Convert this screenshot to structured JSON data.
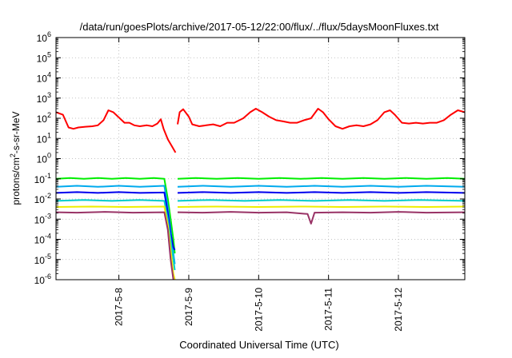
{
  "chart_data": {
    "type": "line",
    "title": "/data/run/goesPlots/archive/2017-05-12/22:00/flux/../flux/5daysMoonFluxes.txt",
    "xlabel": "Coordinated Universal Time (UTC)",
    "ylabel": {
      "pre": "protons/cm",
      "sup": "2",
      "post": "-s-sr-MeV"
    },
    "xlim": [
      7.1,
      12.95
    ],
    "x_unit": "day of May 2017",
    "y_scale": "log",
    "ylim_exp": [
      -6,
      6
    ],
    "grid": true,
    "legend": "none",
    "x_ticks": [
      {
        "x": 8,
        "label": "2017-5-8"
      },
      {
        "x": 9,
        "label": "2017-5-9"
      },
      {
        "x": 10,
        "label": "2017-5-10"
      },
      {
        "x": 11,
        "label": "2017-5-11"
      },
      {
        "x": 12,
        "label": "2017-5-12"
      }
    ],
    "y_ticks": [
      {
        "mant": "10",
        "exp": "-6",
        "e": -6
      },
      {
        "mant": "10",
        "exp": "-5",
        "e": -5
      },
      {
        "mant": "10",
        "exp": "-4",
        "e": -4
      },
      {
        "mant": "10",
        "exp": "-3",
        "e": -3
      },
      {
        "mant": "10",
        "exp": "-2",
        "e": -2
      },
      {
        "mant": "10",
        "exp": "-1",
        "e": -1
      },
      {
        "mant": "10",
        "exp": "0",
        "e": 0
      },
      {
        "mant": "10",
        "exp": "1",
        "e": 1
      },
      {
        "mant": "10",
        "exp": "2",
        "e": 2
      },
      {
        "mant": "10",
        "exp": "3",
        "e": 3
      },
      {
        "mant": "10",
        "exp": "4",
        "e": 4
      },
      {
        "mant": "10",
        "exp": "5",
        "e": 5
      },
      {
        "mant": "10",
        "exp": "6",
        "e": 6
      }
    ],
    "series": [
      {
        "color": "#ff0000",
        "segments": [
          [
            [
              7.1,
              200
            ],
            [
              7.2,
              150
            ],
            [
              7.28,
              35
            ],
            [
              7.35,
              30
            ],
            [
              7.42,
              35
            ],
            [
              7.52,
              38
            ],
            [
              7.62,
              40
            ],
            [
              7.7,
              45
            ],
            [
              7.78,
              80
            ],
            [
              7.85,
              250
            ],
            [
              7.92,
              200
            ],
            [
              8.0,
              110
            ],
            [
              8.08,
              60
            ],
            [
              8.15,
              60
            ],
            [
              8.22,
              45
            ],
            [
              8.3,
              40
            ],
            [
              8.4,
              45
            ],
            [
              8.48,
              40
            ],
            [
              8.55,
              55
            ],
            [
              8.6,
              90
            ],
            [
              8.64,
              30
            ],
            [
              8.7,
              9
            ],
            [
              8.76,
              4
            ],
            [
              8.81,
              2
            ]
          ],
          [
            [
              8.84,
              50
            ],
            [
              8.87,
              200
            ],
            [
              8.92,
              280
            ],
            [
              9.0,
              120
            ],
            [
              9.05,
              50
            ],
            [
              9.15,
              40
            ],
            [
              9.25,
              45
            ],
            [
              9.35,
              50
            ],
            [
              9.45,
              40
            ],
            [
              9.55,
              60
            ],
            [
              9.65,
              60
            ],
            [
              9.78,
              100
            ],
            [
              9.88,
              200
            ],
            [
              9.96,
              300
            ],
            [
              10.05,
              200
            ],
            [
              10.15,
              120
            ],
            [
              10.25,
              80
            ],
            [
              10.35,
              70
            ],
            [
              10.45,
              60
            ],
            [
              10.55,
              60
            ],
            [
              10.65,
              80
            ],
            [
              10.75,
              100
            ],
            [
              10.85,
              300
            ],
            [
              10.92,
              200
            ],
            [
              11.0,
              90
            ],
            [
              11.1,
              40
            ],
            [
              11.2,
              30
            ],
            [
              11.3,
              40
            ],
            [
              11.4,
              45
            ],
            [
              11.5,
              40
            ],
            [
              11.6,
              50
            ],
            [
              11.7,
              80
            ],
            [
              11.8,
              200
            ],
            [
              11.88,
              250
            ],
            [
              11.95,
              150
            ],
            [
              12.05,
              60
            ],
            [
              12.15,
              55
            ],
            [
              12.25,
              60
            ],
            [
              12.35,
              55
            ],
            [
              12.45,
              60
            ],
            [
              12.55,
              60
            ],
            [
              12.65,
              80
            ],
            [
              12.75,
              150
            ],
            [
              12.85,
              250
            ],
            [
              12.95,
              200
            ]
          ]
        ]
      },
      {
        "color": "#00ee00",
        "segments": [
          [
            [
              7.1,
              0.1
            ],
            [
              7.3,
              0.11
            ],
            [
              7.5,
              0.1
            ],
            [
              7.7,
              0.11
            ],
            [
              7.9,
              0.1
            ],
            [
              8.1,
              0.11
            ],
            [
              8.3,
              0.1
            ],
            [
              8.5,
              0.11
            ],
            [
              8.65,
              0.1
            ],
            [
              8.7,
              0.01
            ],
            [
              8.74,
              0.001
            ],
            [
              8.78,
              0.0001
            ],
            [
              8.8,
              2e-05
            ]
          ],
          [
            [
              8.84,
              0.1
            ],
            [
              9.1,
              0.11
            ],
            [
              9.4,
              0.1
            ],
            [
              9.7,
              0.11
            ],
            [
              10.0,
              0.1
            ],
            [
              10.3,
              0.11
            ],
            [
              10.6,
              0.1
            ],
            [
              10.9,
              0.11
            ],
            [
              11.2,
              0.1
            ],
            [
              11.5,
              0.11
            ],
            [
              11.8,
              0.1
            ],
            [
              12.1,
              0.11
            ],
            [
              12.4,
              0.1
            ],
            [
              12.7,
              0.11
            ],
            [
              12.95,
              0.1
            ]
          ]
        ]
      },
      {
        "color": "#00aaee",
        "segments": [
          [
            [
              7.1,
              0.04
            ],
            [
              7.4,
              0.045
            ],
            [
              7.7,
              0.04
            ],
            [
              8.0,
              0.045
            ],
            [
              8.3,
              0.04
            ],
            [
              8.65,
              0.045
            ],
            [
              8.7,
              0.004
            ],
            [
              8.74,
              0.0003
            ],
            [
              8.78,
              2e-05
            ],
            [
              8.8,
              6e-06
            ]
          ],
          [
            [
              8.84,
              0.04
            ],
            [
              9.2,
              0.045
            ],
            [
              9.6,
              0.04
            ],
            [
              10.0,
              0.045
            ],
            [
              10.4,
              0.04
            ],
            [
              10.8,
              0.045
            ],
            [
              11.2,
              0.04
            ],
            [
              11.6,
              0.045
            ],
            [
              12.0,
              0.04
            ],
            [
              12.4,
              0.045
            ],
            [
              12.95,
              0.04
            ]
          ]
        ]
      },
      {
        "color": "#0000ee",
        "segments": [
          [
            [
              7.1,
              0.02
            ],
            [
              7.4,
              0.022
            ],
            [
              7.7,
              0.02
            ],
            [
              8.0,
              0.022
            ],
            [
              8.3,
              0.02
            ],
            [
              8.65,
              0.021
            ],
            [
              8.7,
              0.002
            ],
            [
              8.74,
              0.0002
            ],
            [
              8.78,
              4e-05
            ],
            [
              8.8,
              3e-05
            ]
          ],
          [
            [
              8.84,
              0.02
            ],
            [
              9.2,
              0.022
            ],
            [
              9.6,
              0.02
            ],
            [
              10.0,
              0.022
            ],
            [
              10.4,
              0.02
            ],
            [
              10.8,
              0.022
            ],
            [
              11.2,
              0.02
            ],
            [
              11.6,
              0.022
            ],
            [
              12.0,
              0.02
            ],
            [
              12.4,
              0.022
            ],
            [
              12.95,
              0.02
            ]
          ]
        ]
      },
      {
        "color": "#00cccc",
        "segments": [
          [
            [
              7.1,
              0.008
            ],
            [
              7.5,
              0.009
            ],
            [
              7.9,
              0.008
            ],
            [
              8.3,
              0.009
            ],
            [
              8.65,
              0.008
            ],
            [
              8.7,
              0.001
            ],
            [
              8.74,
              0.0001
            ],
            [
              8.78,
              1e-05
            ],
            [
              8.8,
              3e-06
            ]
          ],
          [
            [
              8.84,
              0.008
            ],
            [
              9.3,
              0.009
            ],
            [
              9.8,
              0.008
            ],
            [
              10.3,
              0.009
            ],
            [
              10.8,
              0.008
            ],
            [
              11.3,
              0.009
            ],
            [
              11.8,
              0.008
            ],
            [
              12.3,
              0.009
            ],
            [
              12.95,
              0.008
            ]
          ]
        ]
      },
      {
        "color": "#eeee00",
        "segments": [
          [
            [
              7.1,
              0.004
            ],
            [
              7.6,
              0.0042
            ],
            [
              8.1,
              0.004
            ],
            [
              8.65,
              0.0042
            ],
            [
              8.7,
              0.0005
            ],
            [
              8.74,
              3e-05
            ],
            [
              8.78,
              2e-06
            ],
            [
              8.8,
              1e-06
            ]
          ],
          [
            [
              8.84,
              0.004
            ],
            [
              9.4,
              0.0042
            ],
            [
              10.0,
              0.004
            ],
            [
              10.6,
              0.0042
            ],
            [
              11.2,
              0.004
            ],
            [
              11.8,
              0.0042
            ],
            [
              12.4,
              0.004
            ],
            [
              12.95,
              0.0042
            ]
          ]
        ]
      },
      {
        "color": "#993366",
        "segments": [
          [
            [
              7.1,
              0.0022
            ],
            [
              7.4,
              0.0021
            ],
            [
              7.8,
              0.0023
            ],
            [
              8.2,
              0.0021
            ],
            [
              8.65,
              0.0022
            ],
            [
              8.7,
              0.0003
            ],
            [
              8.74,
              1e-05
            ],
            [
              8.78,
              1e-06
            ]
          ],
          [
            [
              8.84,
              0.0022
            ],
            [
              9.2,
              0.0021
            ],
            [
              9.6,
              0.0023
            ],
            [
              10.0,
              0.0021
            ],
            [
              10.4,
              0.0022
            ],
            [
              10.7,
              0.0018
            ],
            [
              10.75,
              0.0006
            ],
            [
              10.8,
              0.0021
            ],
            [
              11.2,
              0.0022
            ],
            [
              11.6,
              0.0021
            ],
            [
              12.0,
              0.0023
            ],
            [
              12.4,
              0.0021
            ],
            [
              12.95,
              0.0022
            ]
          ]
        ]
      }
    ]
  }
}
